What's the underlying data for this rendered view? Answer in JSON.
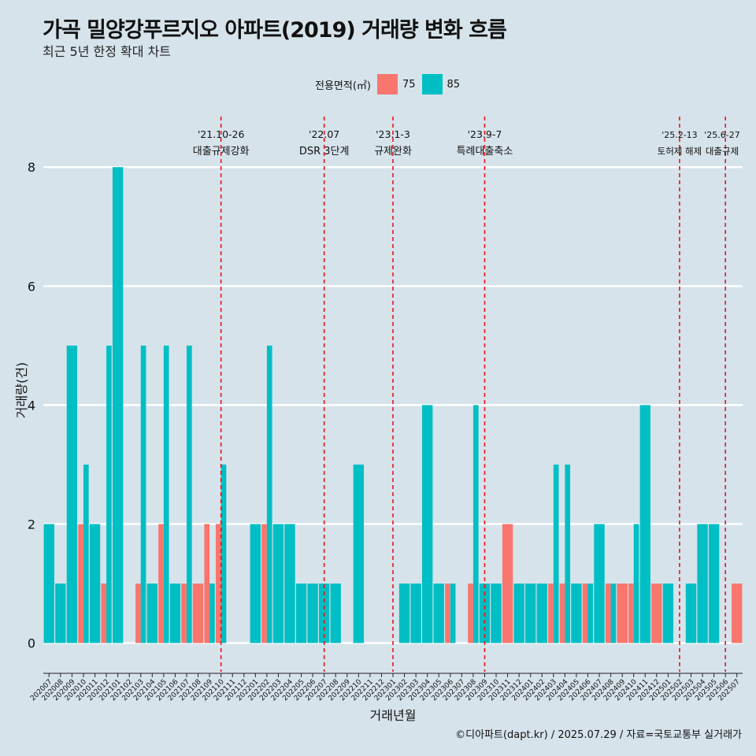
{
  "chart_data": {
    "type": "bar",
    "title": "가곡 밀양강푸르지오 아파트(2019) 거래량 변화 흐름",
    "subtitle": "최근 5년 한정 확대 차트",
    "xlabel": "거래년월",
    "ylabel": "거래량(건)",
    "ylim": [
      -0.35,
      8.85
    ],
    "yticks": [
      0,
      2,
      4,
      6,
      8
    ],
    "legend_title": "전용면적(㎡)",
    "categories": [
      "202007",
      "202008",
      "202009",
      "202010",
      "202011",
      "202012",
      "202101",
      "202102",
      "202103",
      "202104",
      "202105",
      "202106",
      "202107",
      "202108",
      "202109",
      "202110",
      "202111",
      "202112",
      "202201",
      "202202",
      "202203",
      "202204",
      "202205",
      "202206",
      "202207",
      "202208",
      "202209",
      "202210",
      "202211",
      "202212",
      "202301",
      "202302",
      "202303",
      "202304",
      "202305",
      "202306",
      "202307",
      "202308",
      "202309",
      "202310",
      "202311",
      "202312",
      "202401",
      "202402",
      "202403",
      "202404",
      "202405",
      "202406",
      "202407",
      "202408",
      "202409",
      "202410",
      "202411",
      "202412",
      "202501",
      "202502",
      "202503",
      "202504",
      "202505",
      "202506",
      "202507"
    ],
    "series": [
      {
        "name": "75",
        "color": "#f8766d",
        "values": [
          0,
          0,
          0,
          2,
          0,
          1,
          0,
          0,
          1,
          0,
          2,
          0,
          1,
          1,
          2,
          2,
          0,
          0,
          0,
          2,
          0,
          0,
          0,
          0,
          0,
          0,
          0,
          0,
          0,
          0,
          0,
          0,
          0,
          0,
          0,
          1,
          0,
          1,
          0,
          0,
          2,
          0,
          0,
          0,
          1,
          1,
          0,
          1,
          0,
          1,
          1,
          1,
          0,
          1,
          0,
          0,
          0,
          0,
          0,
          0,
          1
        ]
      },
      {
        "name": "85",
        "color": "#00bfc4",
        "values": [
          2,
          1,
          5,
          3,
          2,
          5,
          8,
          0,
          5,
          1,
          5,
          1,
          5,
          0,
          1,
          3,
          0,
          0,
          2,
          5,
          2,
          2,
          1,
          1,
          1,
          1,
          0,
          3,
          0,
          0,
          0,
          1,
          1,
          4,
          1,
          1,
          0,
          4,
          1,
          1,
          0,
          1,
          1,
          1,
          3,
          3,
          1,
          1,
          2,
          1,
          0,
          2,
          4,
          0,
          1,
          0,
          1,
          2,
          2,
          0,
          0
        ]
      }
    ],
    "annotations": [
      {
        "date_label": "'21.10-26",
        "event": "대출규제강화",
        "x_category": "202110"
      },
      {
        "date_label": "'22.07",
        "event": "DSR 3단계",
        "x_category": "202207"
      },
      {
        "date_label": "'23.1-3",
        "event": "규제완화",
        "x_category": "202301"
      },
      {
        "date_label": "'23.9-7",
        "event": "특례대출축소",
        "x_category": "202309"
      },
      {
        "date_label": "'25.2-13",
        "event": "토허제 해제",
        "x_category": "202502"
      },
      {
        "date_label": "'25.6-27",
        "event": "대출규제",
        "x_category": "202506"
      }
    ],
    "colors": {
      "background": "#d6e3eb",
      "grid": "#ffffff",
      "vline": "#e8141c"
    }
  },
  "caption": "©디아파트(dapt.kr) / 2025.07.29 / 자료=국토교통부 실거래가"
}
